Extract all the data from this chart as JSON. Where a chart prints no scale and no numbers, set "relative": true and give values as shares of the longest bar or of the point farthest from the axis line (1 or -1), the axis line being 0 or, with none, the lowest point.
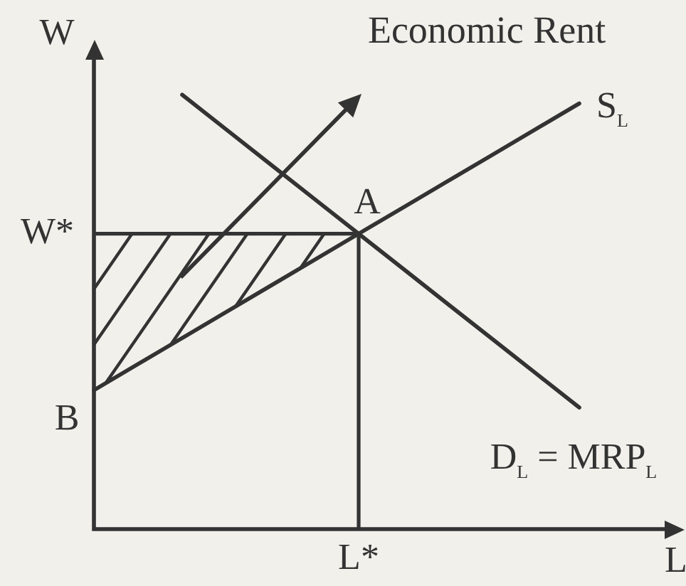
{
  "chart_data": {
    "type": "line",
    "relative": true,
    "marker": "none",
    "xlabel": "L",
    "ylabel": "W",
    "categories": [
      null,
      null,
      null,
      null,
      null,
      null,
      null,
      null,
      null,
      null,
      null,
      null,
      null,
      null
    ],
    "series": [
      {
        "name": "S$_{L}$",
        "color": "#333333",
        "values": [
          0.32,
          0.38,
          0.44,
          0.5,
          0.56,
          0.62,
          0.68,
          0.74,
          0.8,
          0.86,
          0.92,
          0.98,
          null,
          null
        ]
      },
      {
        "name": "D$_{L}$ = MRP$_{L}$",
        "color": "#333333",
        "values": [
          null,
          null,
          1,
          0.92,
          0.84,
          0.76,
          0.68,
          0.6,
          0.52,
          0.44,
          0.36,
          0.28,
          null,
          null
        ]
      }
    ],
    "ref_lines": [
      {
        "axis": "y",
        "value": 0.68,
        "label": "W*",
        "color": "#333333"
      }
    ],
    "annotations": [
      "Economic Rent",
      {
        "text": "A",
        "y": 0.68
      },
      "B",
      "L*"
    ]
  }
}
